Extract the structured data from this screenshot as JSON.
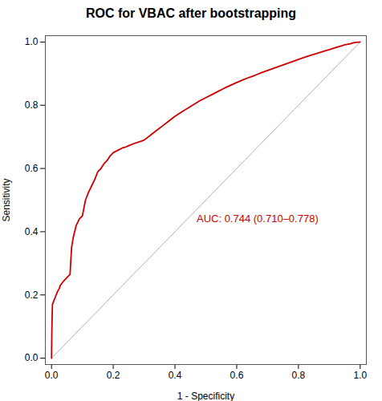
{
  "chart_data": {
    "type": "line",
    "title": "ROC for VBAC after bootstrapping",
    "xlabel": "1 - Specificity",
    "ylabel": "Sensitivity",
    "xlim": [
      -0.02,
      1.02
    ],
    "ylim": [
      -0.02,
      1.02
    ],
    "xticks": [
      {
        "value": 0.0,
        "label": "0.0"
      },
      0.2,
      0.4,
      0.6,
      0.8,
      {
        "value": 1.0,
        "label": "1.0"
      }
    ],
    "yticks": [
      {
        "value": 0.0,
        "label": "0.0"
      },
      0.2,
      0.4,
      0.6,
      0.8,
      {
        "value": 1.0,
        "label": "1.0"
      }
    ],
    "grid": false,
    "series": [
      {
        "color": "#b0b0b0",
        "x": [
          0,
          1
        ],
        "values": [
          0,
          1
        ]
      },
      {
        "color": "#cc0000",
        "x": [
          0.0,
          0.001,
          0.002,
          0.003,
          0.005,
          0.007,
          0.009,
          0.011,
          0.013,
          0.015,
          0.017,
          0.019,
          0.022,
          0.025,
          0.028,
          0.032,
          0.036,
          0.04,
          0.045,
          0.05,
          0.055,
          0.06,
          0.065,
          0.07,
          0.075,
          0.08,
          0.085,
          0.09,
          0.095,
          0.1,
          0.11,
          0.12,
          0.13,
          0.14,
          0.15,
          0.16,
          0.17,
          0.18,
          0.19,
          0.2,
          0.21,
          0.22,
          0.23,
          0.24,
          0.25,
          0.26,
          0.27,
          0.28,
          0.29,
          0.3,
          0.32,
          0.34,
          0.36,
          0.38,
          0.4,
          0.42,
          0.44,
          0.46,
          0.48,
          0.5,
          0.52,
          0.54,
          0.56,
          0.58,
          0.6,
          0.62,
          0.64,
          0.66,
          0.68,
          0.7,
          0.72,
          0.74,
          0.76,
          0.78,
          0.8,
          0.82,
          0.84,
          0.86,
          0.88,
          0.9,
          0.92,
          0.94,
          0.95,
          0.96,
          0.965,
          0.97,
          0.975,
          0.98,
          1.0
        ],
        "values": [
          0.0,
          0.08,
          0.13,
          0.17,
          0.175,
          0.18,
          0.185,
          0.19,
          0.195,
          0.2,
          0.205,
          0.21,
          0.215,
          0.22,
          0.23,
          0.235,
          0.24,
          0.245,
          0.25,
          0.255,
          0.26,
          0.265,
          0.35,
          0.38,
          0.4,
          0.42,
          0.43,
          0.44,
          0.445,
          0.45,
          0.5,
          0.525,
          0.545,
          0.565,
          0.59,
          0.6,
          0.615,
          0.625,
          0.64,
          0.65,
          0.655,
          0.66,
          0.665,
          0.668,
          0.672,
          0.676,
          0.68,
          0.683,
          0.686,
          0.69,
          0.705,
          0.72,
          0.735,
          0.75,
          0.765,
          0.778,
          0.79,
          0.802,
          0.814,
          0.824,
          0.834,
          0.844,
          0.854,
          0.863,
          0.872,
          0.88,
          0.888,
          0.895,
          0.903,
          0.91,
          0.917,
          0.924,
          0.931,
          0.938,
          0.945,
          0.952,
          0.958,
          0.964,
          0.97,
          0.976,
          0.982,
          0.988,
          0.991,
          0.993,
          0.994,
          0.995,
          0.997,
          0.998,
          1.0
        ]
      }
    ],
    "annotations": [
      {
        "text": "AUC: 0.744 (0.710–0.778)",
        "x": 0.47,
        "y": 0.44,
        "color": "#cc0000"
      }
    ]
  }
}
